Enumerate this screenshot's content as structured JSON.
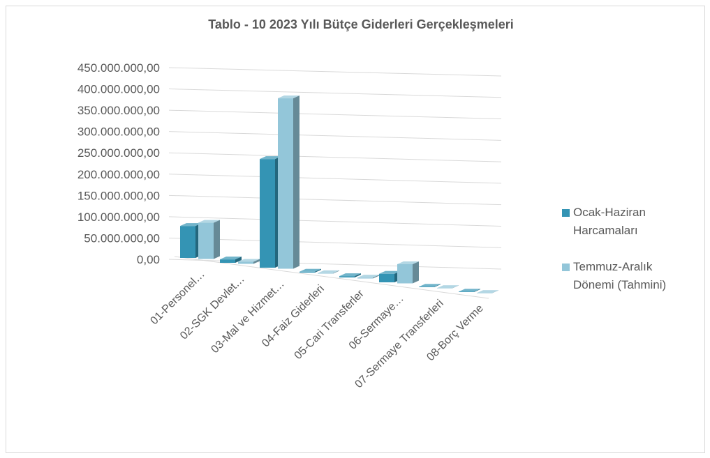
{
  "chart_data": {
    "type": "bar3d",
    "title": "Tablo - 10 2023 Yılı Bütçe Giderleri Gerçekleşmeleri",
    "categories": [
      "01-Personel…",
      "02-SGK Devlet…",
      "03-Mal ve Hizmet…",
      "04-Faiz Giderleri",
      "05-Cari Transferler",
      "06-Sermaye…",
      "07-Sermaye Transferleri",
      "08-Borç Verme"
    ],
    "series": [
      {
        "name": "Ocak-Haziran Harcamaları",
        "color": "#3494b4",
        "values": [
          75000000,
          8000000,
          255000000,
          2000000,
          3000000,
          20000000,
          1000000,
          1000000
        ]
      },
      {
        "name": "Temmuz-Aralık Dönemi (Tahmini)",
        "color": "#93c6d9",
        "values": [
          85000000,
          5000000,
          400000000,
          1000000,
          2000000,
          45000000,
          500000,
          500000
        ]
      }
    ],
    "ylim": [
      0,
      450000000
    ],
    "yticks": [
      {
        "value": 0,
        "label": "0,00"
      },
      {
        "value": 50000000,
        "label": "50.000.000,00"
      },
      {
        "value": 100000000,
        "label": "100.000.000,00"
      },
      {
        "value": 150000000,
        "label": "150.000.000,00"
      },
      {
        "value": 200000000,
        "label": "200.000.000,00"
      },
      {
        "value": 250000000,
        "label": "250.000.000,00"
      },
      {
        "value": 300000000,
        "label": "300.000.000,00"
      },
      {
        "value": 350000000,
        "label": "350.000.000,00"
      },
      {
        "value": 400000000,
        "label": "400.000.000,00"
      },
      {
        "value": 450000000,
        "label": "450.000.000,00"
      }
    ],
    "grid": true,
    "legend": "right"
  }
}
